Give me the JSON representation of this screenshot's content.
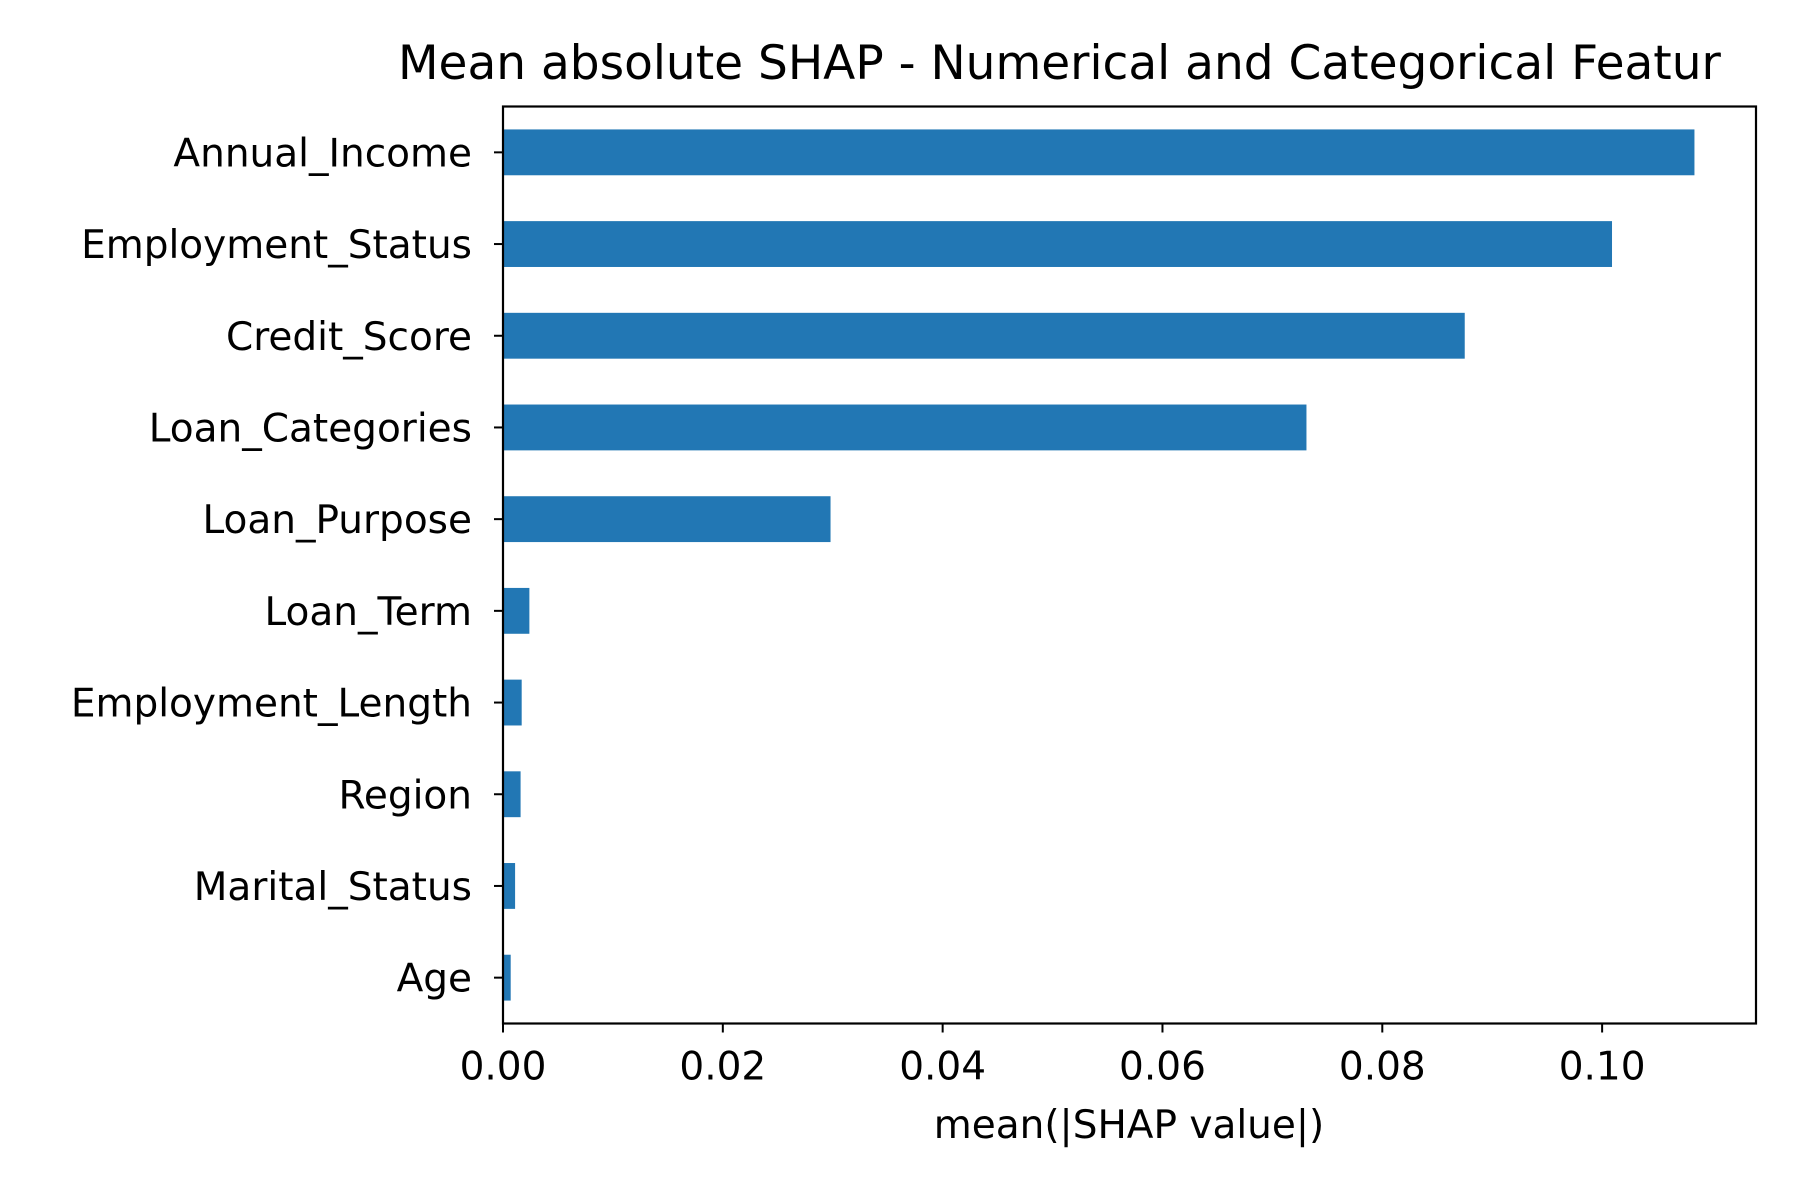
{
  "chart_data": {
    "type": "bar",
    "orientation": "horizontal",
    "title": "Mean absolute SHAP - Numerical and Categorical Featur",
    "xlabel": "mean(|SHAP value|)",
    "ylabel": "",
    "categories": [
      "Annual_Income",
      "Employment_Status",
      "Credit_Score",
      "Loan_Categories",
      "Loan_Purpose",
      "Loan_Term",
      "Employment_Length",
      "Region",
      "Marital_Status",
      "Age"
    ],
    "values": [
      0.1084,
      0.1009,
      0.0875,
      0.0731,
      0.0298,
      0.0024,
      0.0017,
      0.0016,
      0.0011,
      0.0007
    ],
    "xlim": [
      0,
      0.114
    ],
    "xticks": [
      0.0,
      0.02,
      0.04,
      0.06,
      0.08,
      0.1
    ],
    "xtick_labels": [
      "0.00",
      "0.02",
      "0.04",
      "0.06",
      "0.08",
      "0.10"
    ],
    "bar_color": "#2277b4",
    "grid": false,
    "legend": "none"
  }
}
